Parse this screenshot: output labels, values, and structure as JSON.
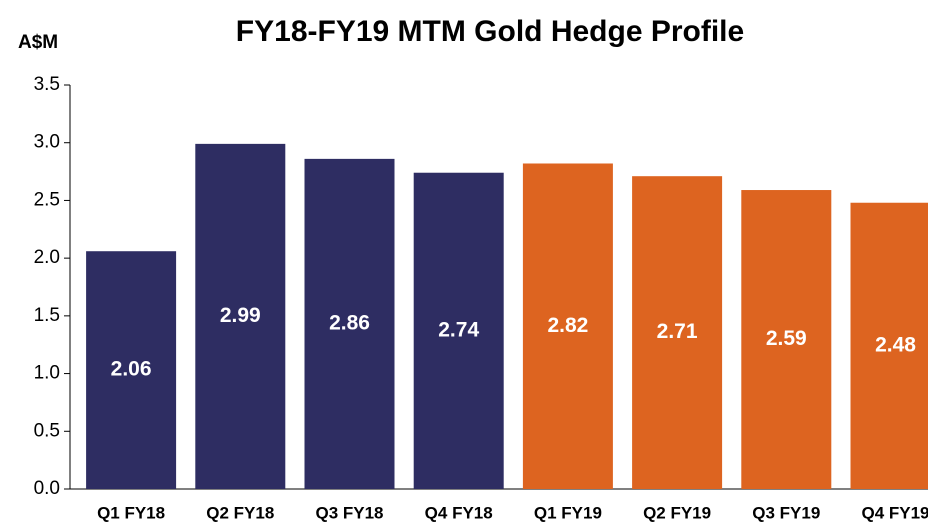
{
  "chart_data": {
    "type": "bar",
    "title": "FY18-FY19 MTM Gold Hedge Profile",
    "y_label": "A$M",
    "categories": [
      "Q1 FY18",
      "Q2 FY18",
      "Q3 FY18",
      "Q4 FY18",
      "Q1 FY19",
      "Q2 FY19",
      "Q3 FY19",
      "Q4 FY19"
    ],
    "values": [
      2.06,
      2.99,
      2.86,
      2.74,
      2.82,
      2.71,
      2.59,
      2.48
    ],
    "colors": [
      "#2e2d62",
      "#2e2d62",
      "#2e2d62",
      "#2e2d62",
      "#dd6420",
      "#dd6420",
      "#dd6420",
      "#dd6420"
    ],
    "ylim": [
      0,
      3.5
    ],
    "yticks": [
      {
        "value": 0,
        "label": "0.0"
      },
      {
        "value": 0.5,
        "label": "0.5"
      },
      {
        "value": 1,
        "label": "1.0"
      },
      {
        "value": 1.5,
        "label": "1.5"
      },
      {
        "value": 2,
        "label": "2.0"
      },
      {
        "value": 2.5,
        "label": "2.5"
      },
      {
        "value": 3,
        "label": "3.0"
      },
      {
        "value": 3.5,
        "label": "3.5"
      }
    ],
    "grid": false
  }
}
